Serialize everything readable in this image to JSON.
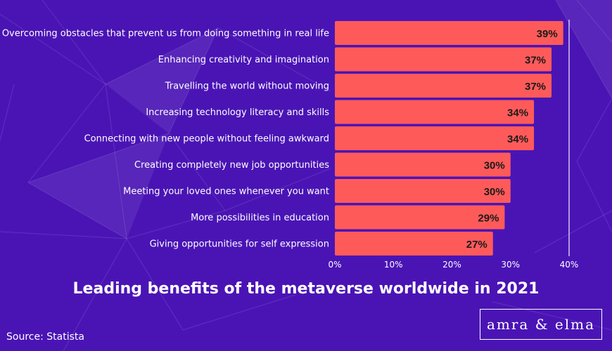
{
  "colors": {
    "background": "#4a14b5",
    "bar": "#ff5a5a",
    "text": "#ffffff",
    "value_text": "#1a1a1a"
  },
  "chart_data": {
    "type": "bar",
    "orientation": "horizontal",
    "title": "Leading benefits of the metaverse worldwide in 2021",
    "categories": [
      "Overcoming obstacles that prevent us from doing something in real life",
      "Enhancing creativity and imagination",
      "Travelling the world without moving",
      "Increasing technology literacy and skills",
      "Connecting with new people without feeling awkward",
      "Creating completely new job opportunities",
      "Meeting your loved ones whenever you want",
      "More possibilities in education",
      "Giving opportunities for self expression"
    ],
    "values": [
      39,
      37,
      37,
      34,
      34,
      30,
      30,
      29,
      27
    ],
    "value_labels": [
      "39%",
      "37%",
      "37%",
      "34%",
      "34%",
      "30%",
      "30%",
      "29%",
      "27%"
    ],
    "xlim": [
      0,
      40
    ],
    "xticks": [
      0,
      10,
      20,
      30,
      40
    ],
    "xtick_labels": [
      "0%",
      "10%",
      "20%",
      "30%",
      "40%"
    ],
    "grid": false
  },
  "footer": {
    "source": "Source: Statista",
    "brand": "amra & elma"
  }
}
